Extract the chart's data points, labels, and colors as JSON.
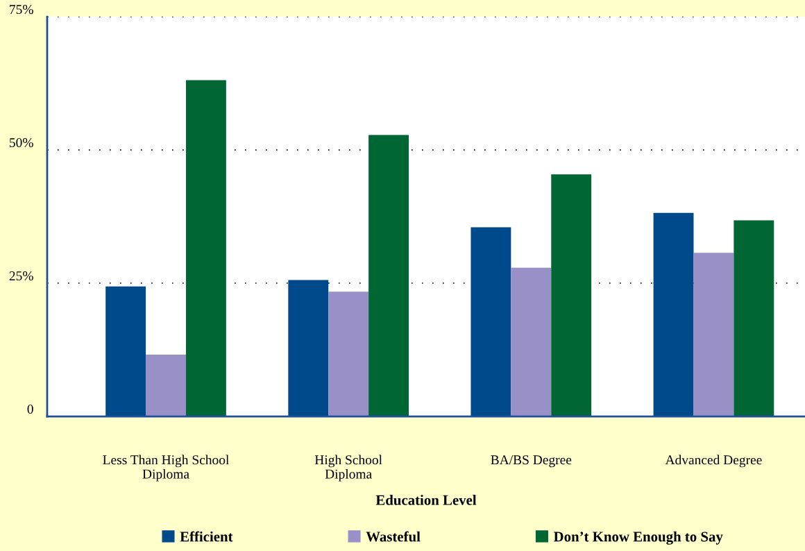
{
  "chart_data": {
    "type": "bar",
    "xlabel": "Education Level",
    "categories": [
      "Less Than High School\nDiploma",
      "High School\nDiploma",
      "BA/BS Degree",
      "Advanced Degree"
    ],
    "series": [
      {
        "name": "Efficient",
        "color": "#004a8c",
        "values": [
          24.4,
          25.6,
          35.5,
          38.2
        ]
      },
      {
        "name": "Wasteful",
        "color": "#9990c8",
        "values": [
          11.6,
          23.4,
          27.9,
          30.7
        ]
      },
      {
        "name": "Don’t Know Enough to Say",
        "color": "#006633",
        "values": [
          63.1,
          52.8,
          45.4,
          36.8
        ]
      }
    ],
    "ylim": [
      0,
      75
    ],
    "yticks": [
      {
        "value": 0,
        "label": "0"
      },
      {
        "value": 25,
        "label": "25%"
      },
      {
        "value": 50,
        "label": "50%"
      },
      {
        "value": 75,
        "label": "75%"
      }
    ],
    "grid": "y",
    "legend": "bottom"
  }
}
